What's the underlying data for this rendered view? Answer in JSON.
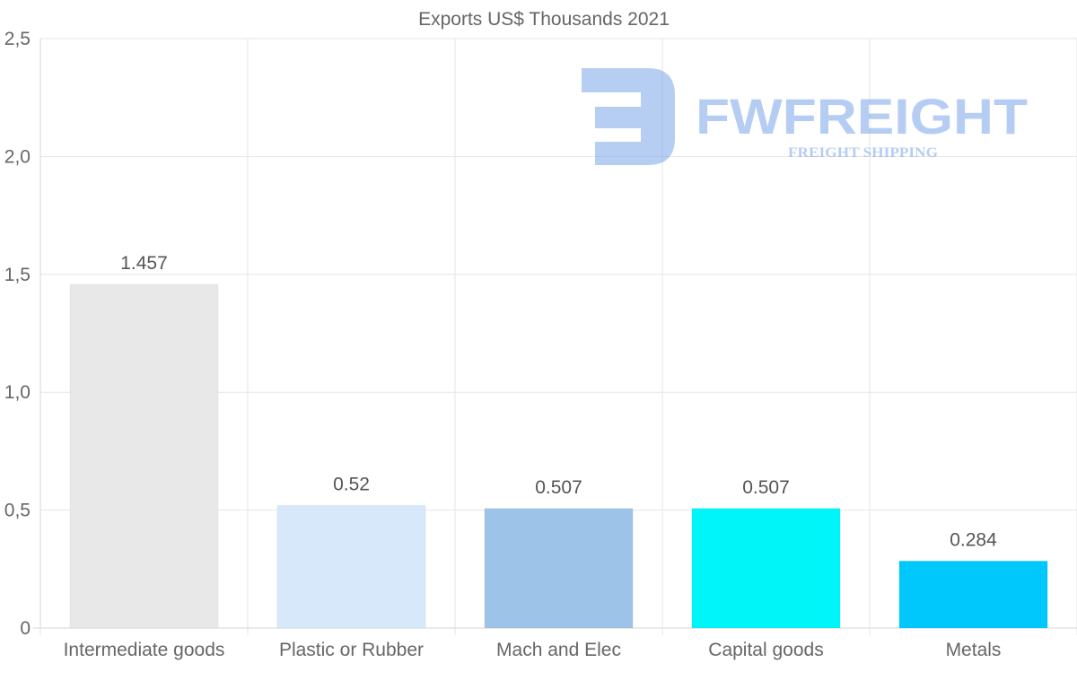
{
  "chart_data": {
    "type": "bar",
    "title": "Exports US$ Thousands 2021",
    "categories": [
      "Intermediate goods",
      "Plastic or Rubber",
      "Mach and Elec",
      "Capital goods",
      "Metals"
    ],
    "values": [
      1.457,
      0.52,
      0.507,
      0.507,
      0.284
    ],
    "value_labels": [
      "1.457",
      "0.52",
      "0.507",
      "0.507",
      "0.284"
    ],
    "colors": [
      "#e8e8e8",
      "#d6e8fa",
      "#9dc4e8",
      "#00f5f8",
      "#00c8fc"
    ],
    "ylim": [
      0,
      2.5
    ],
    "yticks": [
      0,
      0.5,
      1.0,
      1.5,
      2.0,
      2.5
    ],
    "ytick_labels": [
      "0",
      "0,5",
      "1,0",
      "1,5",
      "2,0",
      "2,5"
    ],
    "xlabel": "",
    "ylabel": "",
    "grid": true
  },
  "watermark": {
    "brand": "FWFREIGHT",
    "tagline": "FREIGHT SHIPPING",
    "color": "#6f9de8"
  }
}
